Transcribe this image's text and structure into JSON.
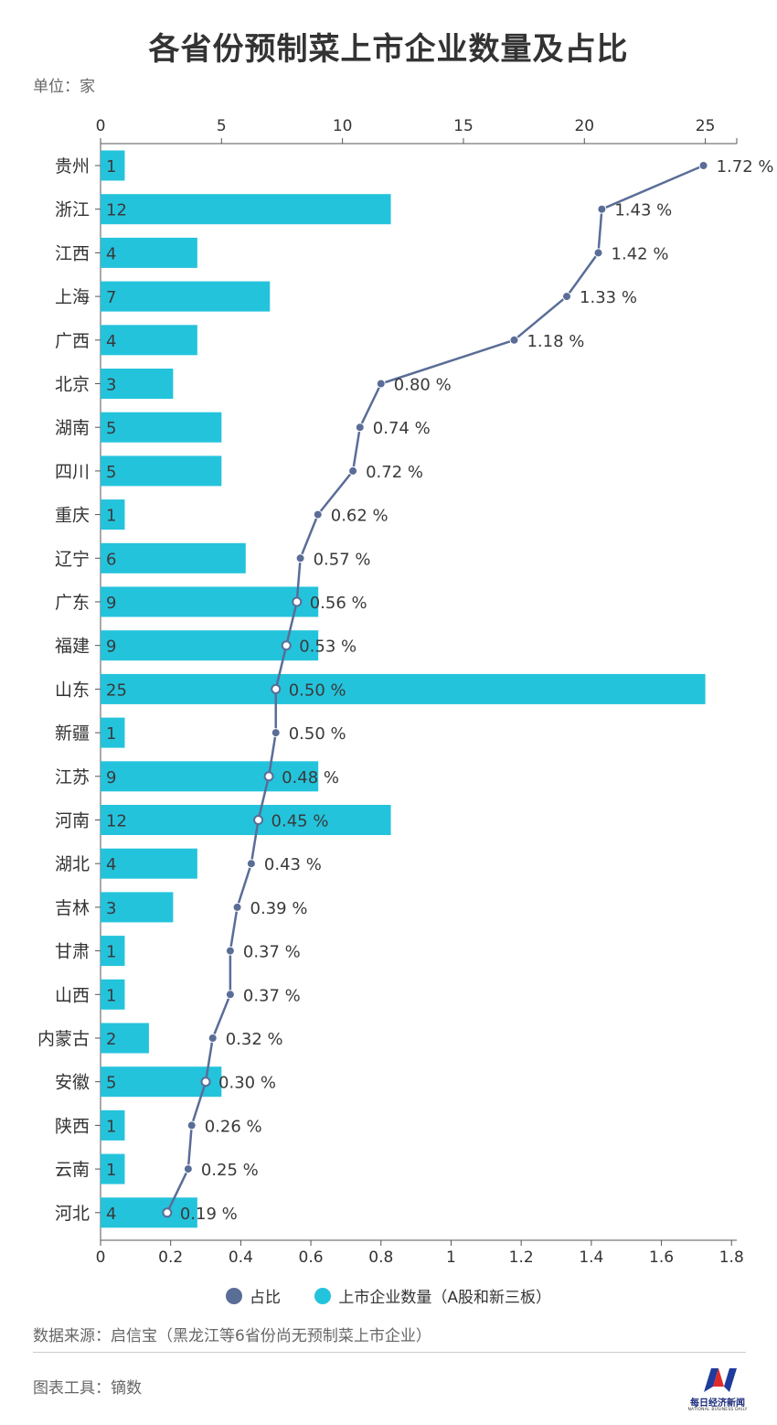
{
  "page": {
    "title": "各省份预制菜上市企业数量及占比",
    "unit_label": "单位：家",
    "source": "数据来源：启信宝（黑龙江等6省份尚无预制菜上市企业）",
    "tool": "图表工具：镝数",
    "logo_text": "每日经济新闻",
    "logo_subtext": "NATIONAL BUSINESS DAILY"
  },
  "colors": {
    "bar": "#24c3dc",
    "line": "#5a6d97",
    "axis": "#555555",
    "text": "#333333"
  },
  "chart_data": {
    "type": "bar",
    "categories": [
      "贵州",
      "浙江",
      "江西",
      "上海",
      "广西",
      "北京",
      "湖南",
      "四川",
      "重庆",
      "辽宁",
      "广东",
      "福建",
      "山东",
      "新疆",
      "江苏",
      "河南",
      "湖北",
      "吉林",
      "甘肃",
      "山西",
      "内蒙古",
      "安徽",
      "陕西",
      "云南",
      "河北"
    ],
    "series": [
      {
        "name": "上市企业数量（A股和新三板）",
        "type": "bar",
        "axis": "top",
        "values": [
          1,
          12,
          4,
          7,
          4,
          3,
          5,
          5,
          1,
          6,
          9,
          9,
          25,
          1,
          9,
          12,
          4,
          3,
          1,
          1,
          2,
          5,
          1,
          1,
          4
        ]
      },
      {
        "name": "占比",
        "type": "line",
        "axis": "bottom",
        "values": [
          1.72,
          1.43,
          1.42,
          1.33,
          1.18,
          0.8,
          0.74,
          0.72,
          0.62,
          0.57,
          0.56,
          0.53,
          0.5,
          0.5,
          0.48,
          0.45,
          0.43,
          0.39,
          0.37,
          0.37,
          0.32,
          0.3,
          0.26,
          0.25,
          0.19
        ],
        "labels": [
          "1.72 %",
          "1.43 %",
          "1.42 %",
          "1.33 %",
          "1.18 %",
          "0.80 %",
          "0.74 %",
          "0.72 %",
          "0.62 %",
          "0.57 %",
          "0.56 %",
          "0.53 %",
          "0.50 %",
          "0.50 %",
          "0.48 %",
          "0.45 %",
          "0.43 %",
          "0.39 %",
          "0.37 %",
          "0.37 %",
          "0.32 %",
          "0.30 %",
          "0.26 %",
          "0.25 %",
          "0.19 %"
        ]
      }
    ],
    "top_axis": {
      "ticks": [
        "0",
        "5",
        "10",
        "15",
        "20",
        "25"
      ],
      "range": [
        0,
        26.3
      ]
    },
    "bottom_axis": {
      "ticks": [
        "0",
        "0.2",
        "0.4",
        "0.6",
        "0.8",
        "1",
        "1.2",
        "1.4",
        "1.6",
        "1.8"
      ],
      "range": [
        0,
        1.815
      ]
    },
    "legend_position": "bottom"
  }
}
